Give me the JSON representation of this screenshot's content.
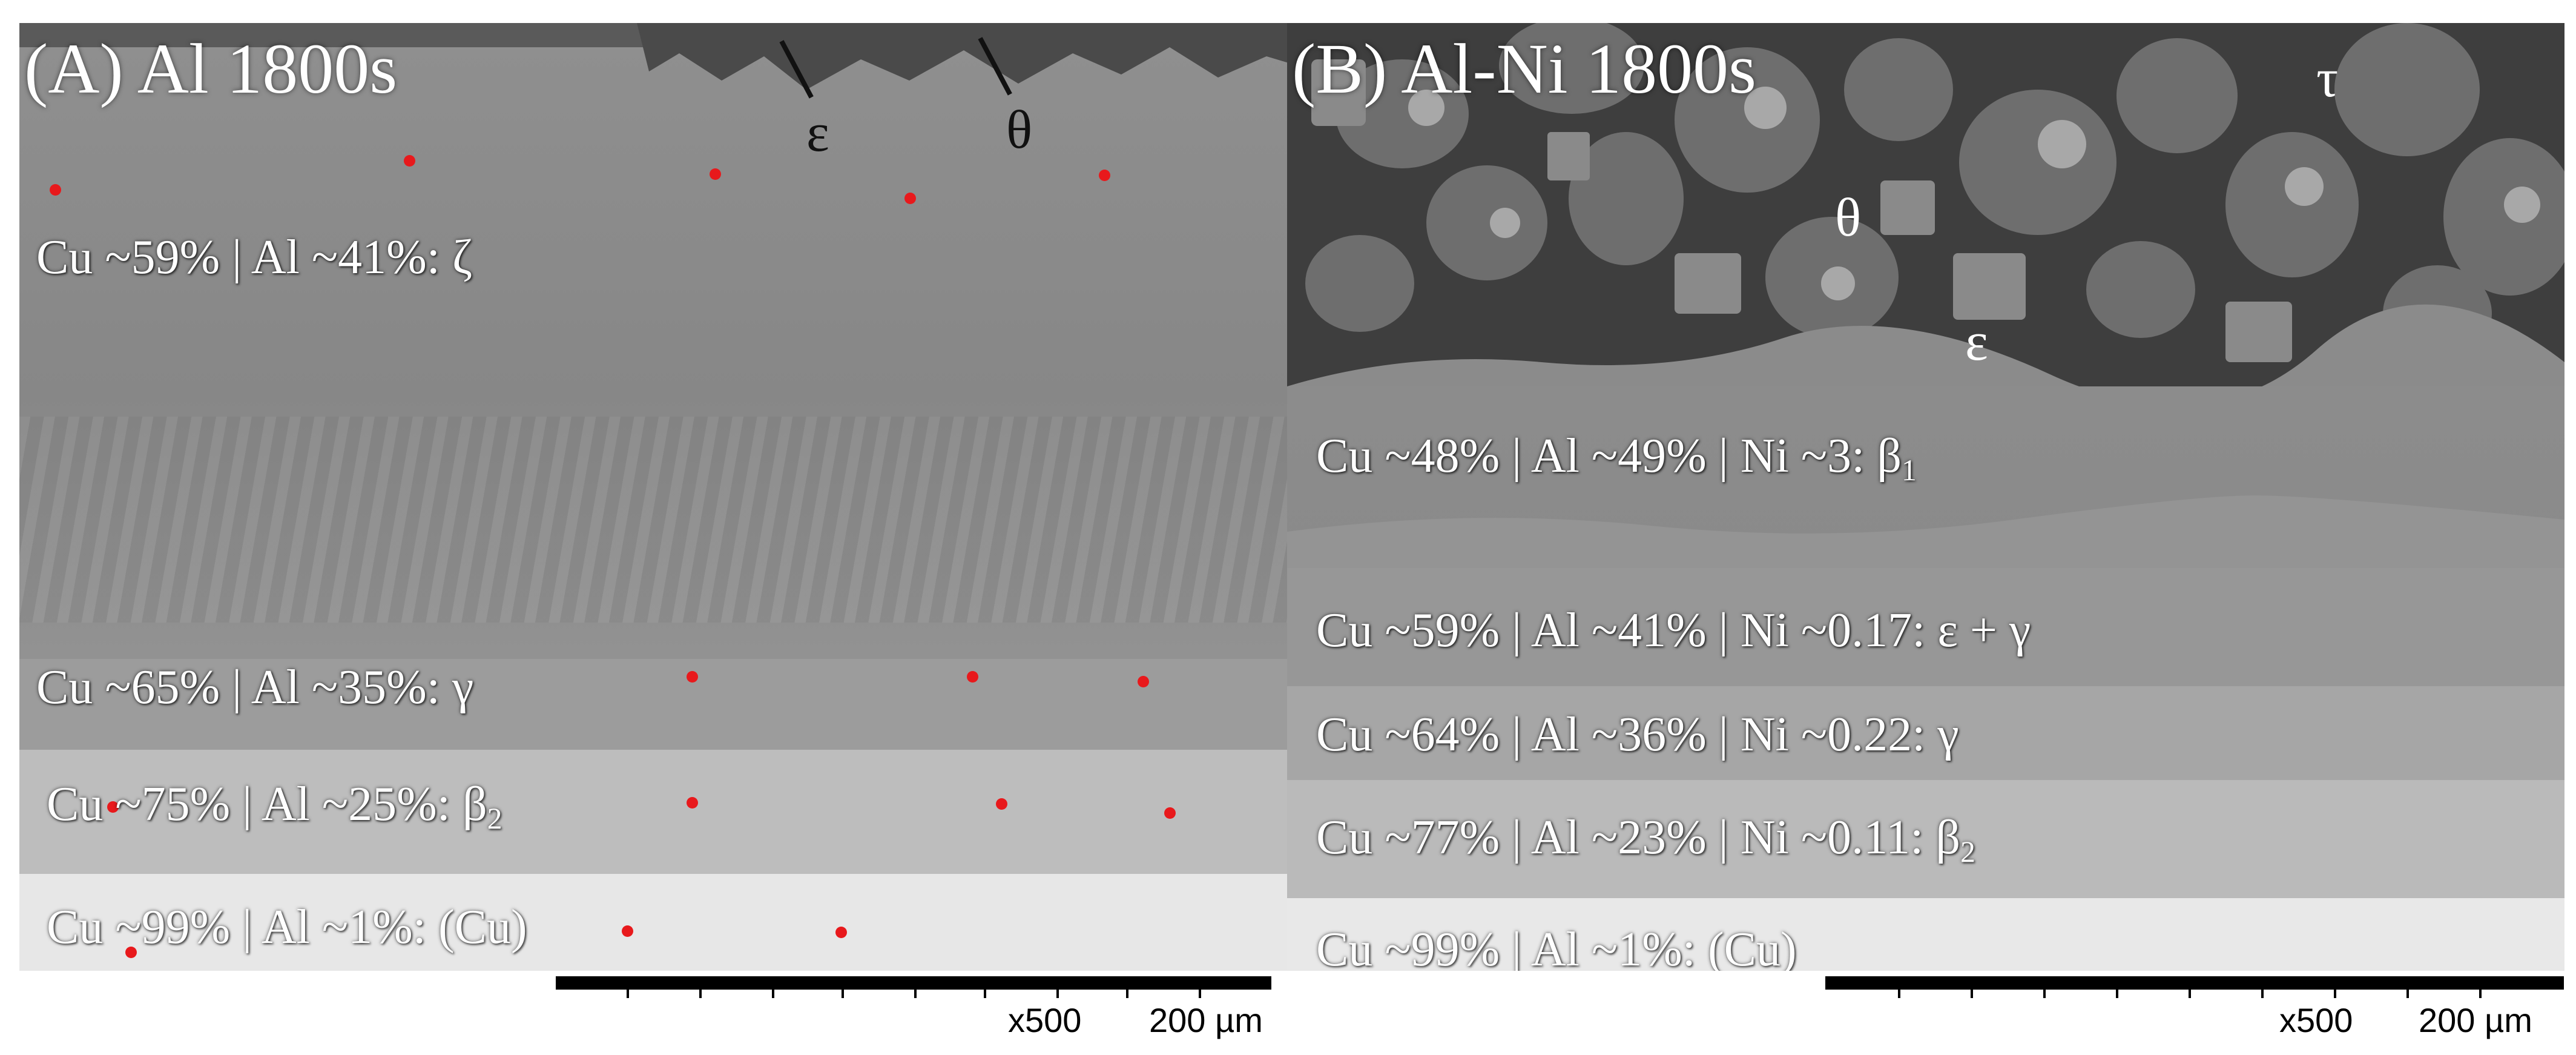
{
  "panel_a": {
    "title": "(A) Al 1800s",
    "phase_epsilon": "ε",
    "phase_theta": "θ",
    "labels": {
      "zeta": "Cu ~59% | Al ~41%: ζ",
      "gamma": "Cu ~65% | Al ~35%: γ",
      "beta2_main": "Cu ~75% | Al ~25%: β",
      "beta2_sub": "2",
      "cu": "Cu ~99% | Al ~1%: (Cu)"
    },
    "scale": {
      "magnification": "x500",
      "length": "200 µm"
    }
  },
  "panel_b": {
    "title": "(B) Al-Ni 1800s",
    "phase_tau": "τ",
    "phase_theta": "θ",
    "phase_epsilon": "ε",
    "labels": {
      "beta1_main": "Cu ~48% | Al ~49% | Ni ~3: β",
      "beta1_sub": "1",
      "eps_gamma": "Cu ~59% | Al ~41% | Ni ~0.17: ε + γ",
      "gamma": "Cu ~64% | Al ~36% | Ni ~0.22: γ",
      "beta2_main": "Cu ~77% | Al ~23% | Ni ~0.11: β",
      "beta2_sub": "2",
      "cu": "Cu ~99% | Al ~1%: (Cu)"
    },
    "scale": {
      "magnification": "x500",
      "length": "200 µm"
    }
  },
  "colors": {
    "marker": "#e8191c",
    "zeta_layer": "#8a8a8a",
    "gamma_layer": "#9d9d9d",
    "beta2_layer": "#bdbdbd",
    "cu_layer": "#e6e6e6",
    "particle_matrix": "#3c3c3c"
  }
}
